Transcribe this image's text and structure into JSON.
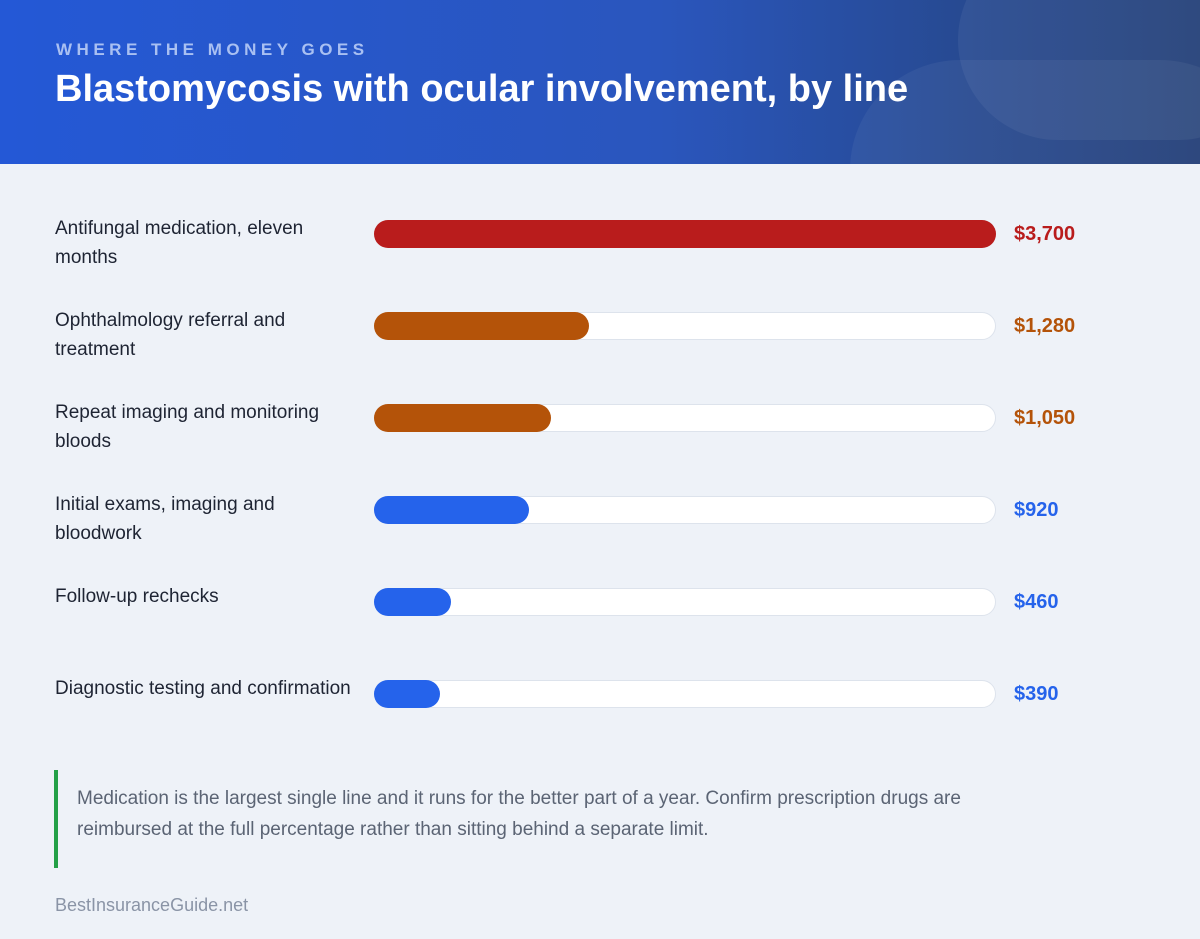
{
  "header": {
    "eyebrow": "WHERE THE MONEY GOES",
    "title": "Blastomycosis with ocular involvement, by line"
  },
  "chart_data": {
    "type": "bar",
    "orientation": "horizontal",
    "categories": [
      "Antifungal medication, eleven months",
      "Ophthalmology referral and treatment",
      "Repeat imaging and monitoring bloods",
      "Initial exams, imaging and bloodwork",
      "Follow-up rechecks",
      "Diagnostic testing and confirmation"
    ],
    "values": [
      3700,
      1280,
      1050,
      920,
      460,
      390
    ],
    "value_labels": [
      "$3,700",
      "$1,280",
      "$1,050",
      "$920",
      "$460",
      "$390"
    ],
    "colors": [
      "#b91c1c",
      "#b45309",
      "#b45309",
      "#2563eb",
      "#2563eb",
      "#2563eb"
    ],
    "xlim": [
      0,
      3700
    ],
    "grid": false,
    "legend": "none"
  },
  "note": {
    "text": "Medication is the largest single line and it runs for the better part of a year. Confirm prescription drugs are reimbursed at the full percentage rather than sitting behind a separate limit."
  },
  "footer": {
    "source": "BestInsuranceGuide.net"
  }
}
